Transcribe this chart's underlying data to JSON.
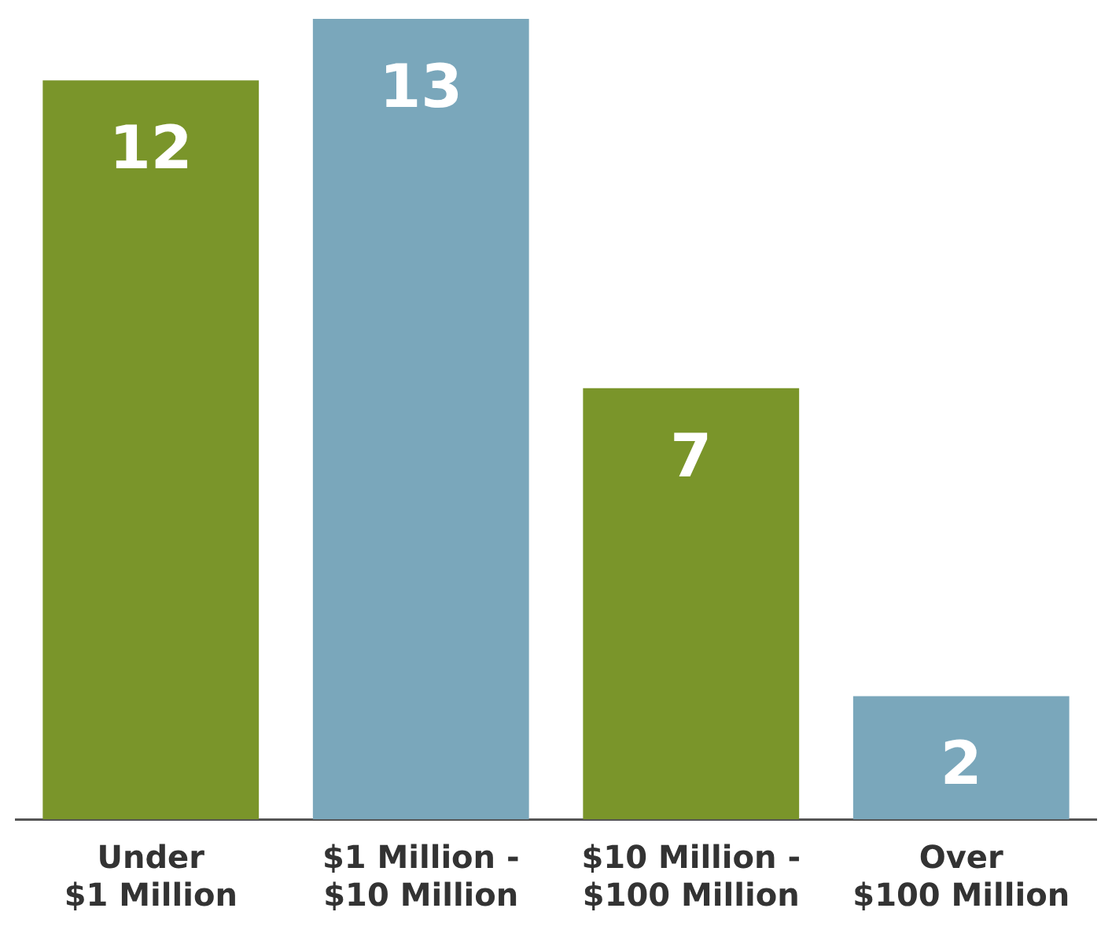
{
  "chart_data": {
    "type": "bar",
    "categories": [
      "Under\n$1 Million",
      "$1 Million -\n$10 Million",
      "$10 Million -\n$100 Million",
      "Over\n$100 Million"
    ],
    "values": [
      12,
      13,
      7,
      2
    ],
    "colors": [
      "#7a952a",
      "#7aa7bb",
      "#7a952a",
      "#7aa7bb"
    ],
    "data_labels": true,
    "grid": false,
    "legend": false
  }
}
